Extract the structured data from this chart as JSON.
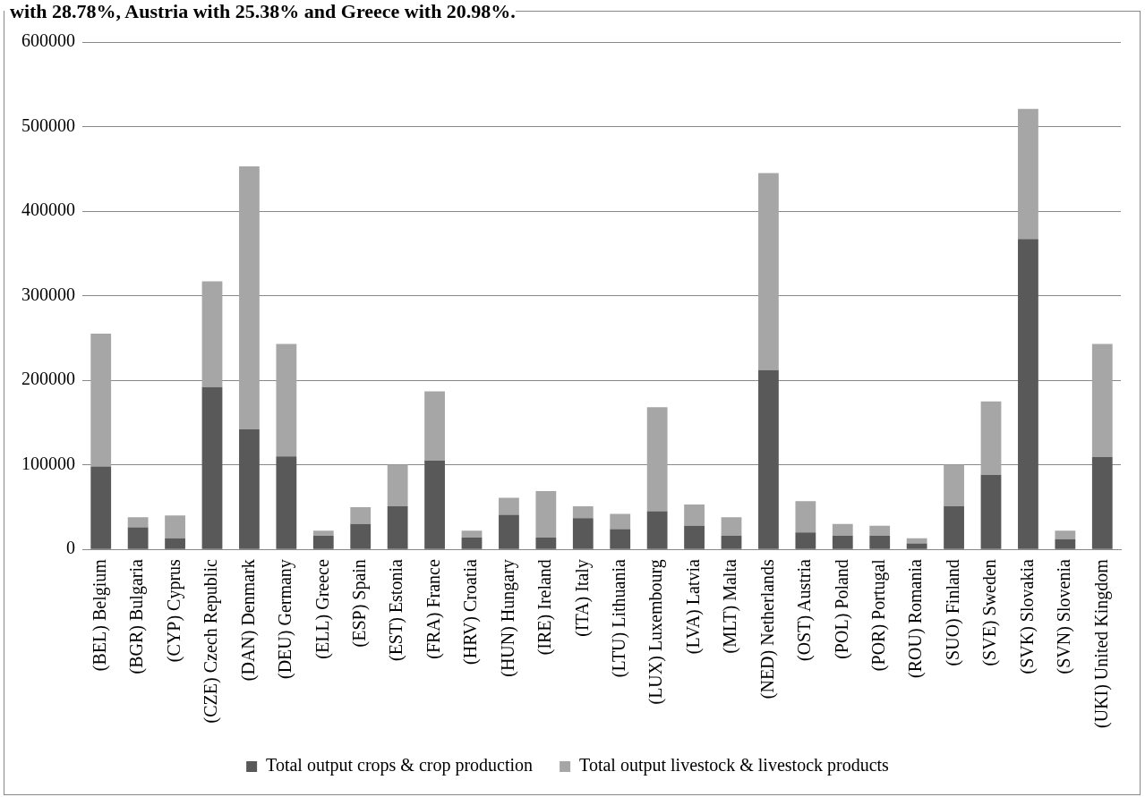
{
  "chart_data": {
    "type": "bar",
    "stacked": true,
    "annotations": [
      "with 28.78%, Austria with 25.38% and Greece with 20.98%."
    ],
    "categories": [
      "(BEL) Belgium",
      "(BGR) Bulgaria",
      "(CYP) Cyprus",
      "(CZE) Czech Republic",
      "(DAN) Denmark",
      "(DEU) Germany",
      "(ELL) Greece",
      "(ESP) Spain",
      "(EST) Estonia",
      "(FRA) France",
      "(HRV) Croatia",
      "(HUN) Hungary",
      "(IRE) Ireland",
      "(ITA) Italy",
      "(LTU) Lithuania",
      "(LUX) Luxembourg",
      "(LVA) Latvia",
      "(MLT) Malta",
      "(NED) Netherlands",
      "(OST) Austria",
      "(POL) Poland",
      "(POR) Portugal",
      "(ROU) Romania",
      "(SUO) Finland",
      "(SVE) Sweden",
      "(SVK) Slovakia",
      "(SVN) Slovenia",
      "(UKI) United Kingdom"
    ],
    "series": [
      {
        "name": "Total output crops & crop production",
        "color": "#595959",
        "values": [
          98000,
          26000,
          13000,
          192000,
          142000,
          110000,
          16000,
          30000,
          51000,
          105000,
          14000,
          41000,
          14000,
          37000,
          24000,
          45000,
          28000,
          16000,
          212000,
          20000,
          16000,
          16000,
          7000,
          51000,
          88000,
          367000,
          12000,
          109000
        ]
      },
      {
        "name": "Total output livestock & livestock products",
        "color": "#a6a6a6",
        "values": [
          157000,
          12000,
          27000,
          125000,
          311000,
          133000,
          6000,
          20000,
          49000,
          82000,
          8000,
          20000,
          55000,
          14000,
          18000,
          123000,
          25000,
          22000,
          233000,
          37000,
          14000,
          12000,
          6000,
          49000,
          87000,
          154000,
          10000,
          134000
        ]
      }
    ],
    "ylim": [
      0,
      600000
    ],
    "yticks": [
      0,
      100000,
      200000,
      300000,
      400000,
      500000,
      600000
    ],
    "grid": "y",
    "legend": "bottom"
  }
}
